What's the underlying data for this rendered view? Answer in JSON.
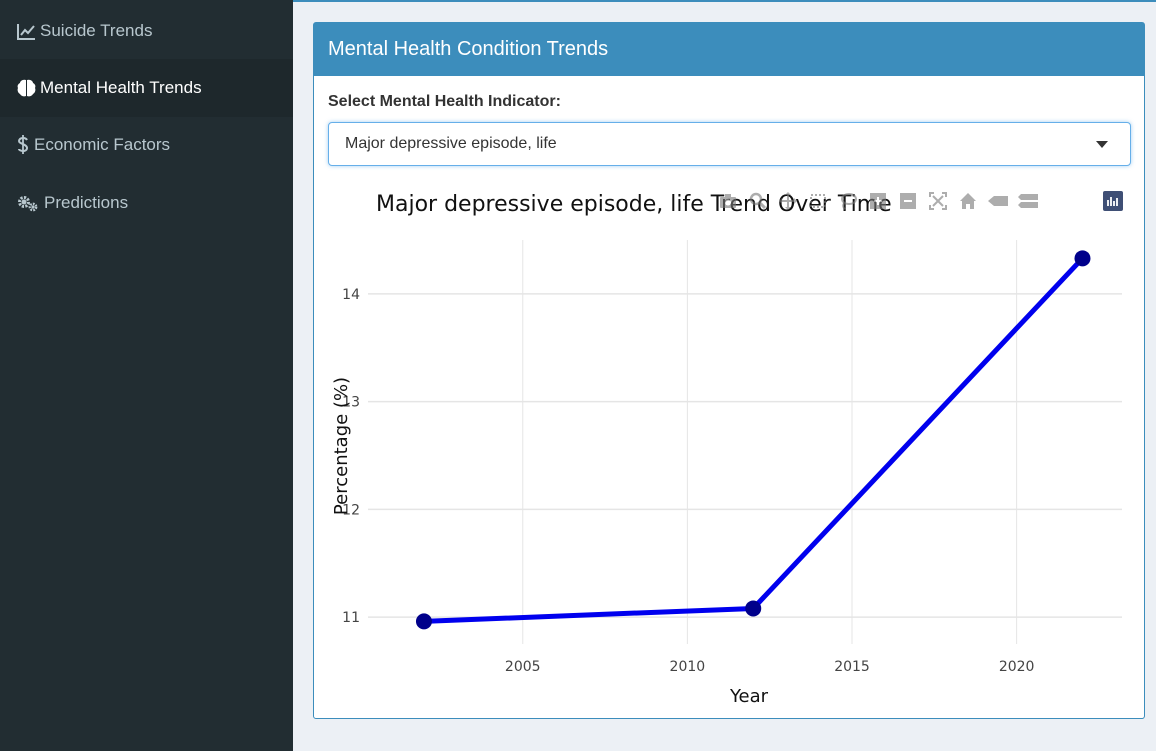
{
  "sidebar": {
    "items": [
      {
        "label": "Suicide Trends",
        "icon": "line-chart-icon",
        "active": false
      },
      {
        "label": "Mental Health Trends",
        "icon": "brain-icon",
        "active": true
      },
      {
        "label": "Economic Factors",
        "icon": "dollar-icon",
        "active": false
      },
      {
        "label": "Predictions",
        "icon": "gears-icon",
        "active": false
      }
    ]
  },
  "panel": {
    "title": "Mental Health Condition Trends",
    "select_label": "Select Mental Health Indicator:",
    "select_value": "Major depressive episode, life"
  },
  "modebar": {
    "buttons": [
      "camera-icon",
      "zoom-icon",
      "pan-icon",
      "box-select-icon",
      "lasso-icon",
      "zoom-in-icon",
      "zoom-out-icon",
      "autoscale-icon",
      "home-icon",
      "spike-lines-icon",
      "compare-hover-icon"
    ],
    "logo": "plotly-logo-icon"
  },
  "colors": {
    "accent": "#3c8dbc",
    "sidebar_bg": "#222d32",
    "line": "#0000ee",
    "marker": "#00008b"
  },
  "chart_data": {
    "type": "line",
    "title": "Major depressive episode, life Trend Over Time",
    "xlabel": "Year",
    "ylabel": "Percentage (%)",
    "x": [
      2002,
      2012,
      2022
    ],
    "y": [
      10.96,
      11.08,
      14.33
    ],
    "xlim": [
      2000.3,
      2023.2
    ],
    "ylim": [
      10.75,
      14.5
    ],
    "xticks": [
      2005,
      2010,
      2015,
      2020
    ],
    "yticks": [
      11,
      12,
      13,
      14
    ],
    "grid": true,
    "legend": false
  }
}
